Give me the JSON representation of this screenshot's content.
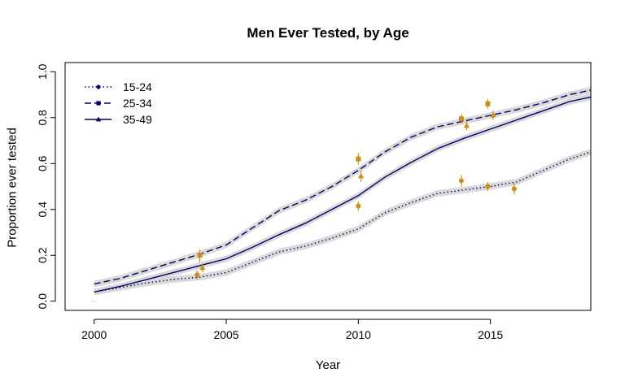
{
  "chart_data": {
    "type": "line",
    "title": "Men Ever Tested, by Age",
    "xlabel": "Year",
    "ylabel": "Proportion ever tested",
    "xlim": [
      1998.9,
      2018.8
    ],
    "ylim": [
      -0.04,
      1.04
    ],
    "x_ticks": [
      2000,
      2005,
      2010,
      2015
    ],
    "y_ticks": [
      0.0,
      0.2,
      0.4,
      0.6,
      0.8,
      1.0
    ],
    "y_tick_labels": [
      "0.0",
      "0.2",
      "0.4",
      "0.6",
      "0.8",
      "1.0"
    ],
    "grid": false,
    "legend_position": "top-left",
    "line_color": "#000066",
    "band_color": "#d9d9d9",
    "point_color": "#c8901a",
    "series": [
      {
        "name": "15-24",
        "linestyle": "dotted",
        "marker": "circle",
        "x": [
          2000,
          2001,
          2002,
          2003,
          2004,
          2005,
          2006,
          2007,
          2008,
          2009,
          2010,
          2011,
          2012,
          2013,
          2014,
          2015,
          2016,
          2017,
          2018,
          2018.8
        ],
        "y": [
          0.04,
          0.06,
          0.08,
          0.095,
          0.105,
          0.125,
          0.17,
          0.215,
          0.24,
          0.275,
          0.315,
          0.385,
          0.43,
          0.47,
          0.485,
          0.5,
          0.52,
          0.57,
          0.62,
          0.65
        ],
        "observed": [
          {
            "x": 2003.9,
            "y": 0.115,
            "lo": 0.095,
            "hi": 0.135
          },
          {
            "x": 2010.0,
            "y": 0.415,
            "lo": 0.395,
            "hi": 0.435
          },
          {
            "x": 2013.9,
            "y": 0.525,
            "lo": 0.5,
            "hi": 0.55
          },
          {
            "x": 2014.9,
            "y": 0.5,
            "lo": 0.48,
            "hi": 0.52
          },
          {
            "x": 2015.9,
            "y": 0.49,
            "lo": 0.465,
            "hi": 0.515
          }
        ]
      },
      {
        "name": "25-34",
        "linestyle": "dashed",
        "marker": "square",
        "x": [
          2000,
          2001,
          2002,
          2003,
          2004,
          2005,
          2006,
          2007,
          2008,
          2009,
          2010,
          2011,
          2012,
          2013,
          2014,
          2015,
          2016,
          2017,
          2018,
          2018.8
        ],
        "y": [
          0.075,
          0.1,
          0.135,
          0.17,
          0.205,
          0.245,
          0.32,
          0.395,
          0.44,
          0.5,
          0.57,
          0.65,
          0.715,
          0.76,
          0.785,
          0.81,
          0.835,
          0.865,
          0.9,
          0.92
        ],
        "observed": [
          {
            "x": 2004.0,
            "y": 0.2,
            "lo": 0.17,
            "hi": 0.225
          },
          {
            "x": 2010.0,
            "y": 0.62,
            "lo": 0.595,
            "hi": 0.645
          },
          {
            "x": 2013.9,
            "y": 0.795,
            "lo": 0.775,
            "hi": 0.815
          },
          {
            "x": 2014.9,
            "y": 0.86,
            "lo": 0.84,
            "hi": 0.88
          }
        ]
      },
      {
        "name": "35-49",
        "linestyle": "solid",
        "marker": "triangle",
        "x": [
          2000,
          2001,
          2002,
          2003,
          2004,
          2005,
          2006,
          2007,
          2008,
          2009,
          2010,
          2011,
          2012,
          2013,
          2014,
          2015,
          2016,
          2017,
          2018,
          2018.8
        ],
        "y": [
          0.04,
          0.065,
          0.095,
          0.125,
          0.155,
          0.185,
          0.235,
          0.29,
          0.34,
          0.4,
          0.46,
          0.54,
          0.605,
          0.665,
          0.71,
          0.75,
          0.79,
          0.83,
          0.87,
          0.89
        ],
        "observed": [
          {
            "x": 2004.1,
            "y": 0.145,
            "lo": 0.125,
            "hi": 0.165
          },
          {
            "x": 2010.1,
            "y": 0.545,
            "lo": 0.52,
            "hi": 0.57
          },
          {
            "x": 2014.1,
            "y": 0.765,
            "lo": 0.745,
            "hi": 0.785
          },
          {
            "x": 2015.1,
            "y": 0.81,
            "lo": 0.79,
            "hi": 0.83
          }
        ]
      }
    ]
  }
}
